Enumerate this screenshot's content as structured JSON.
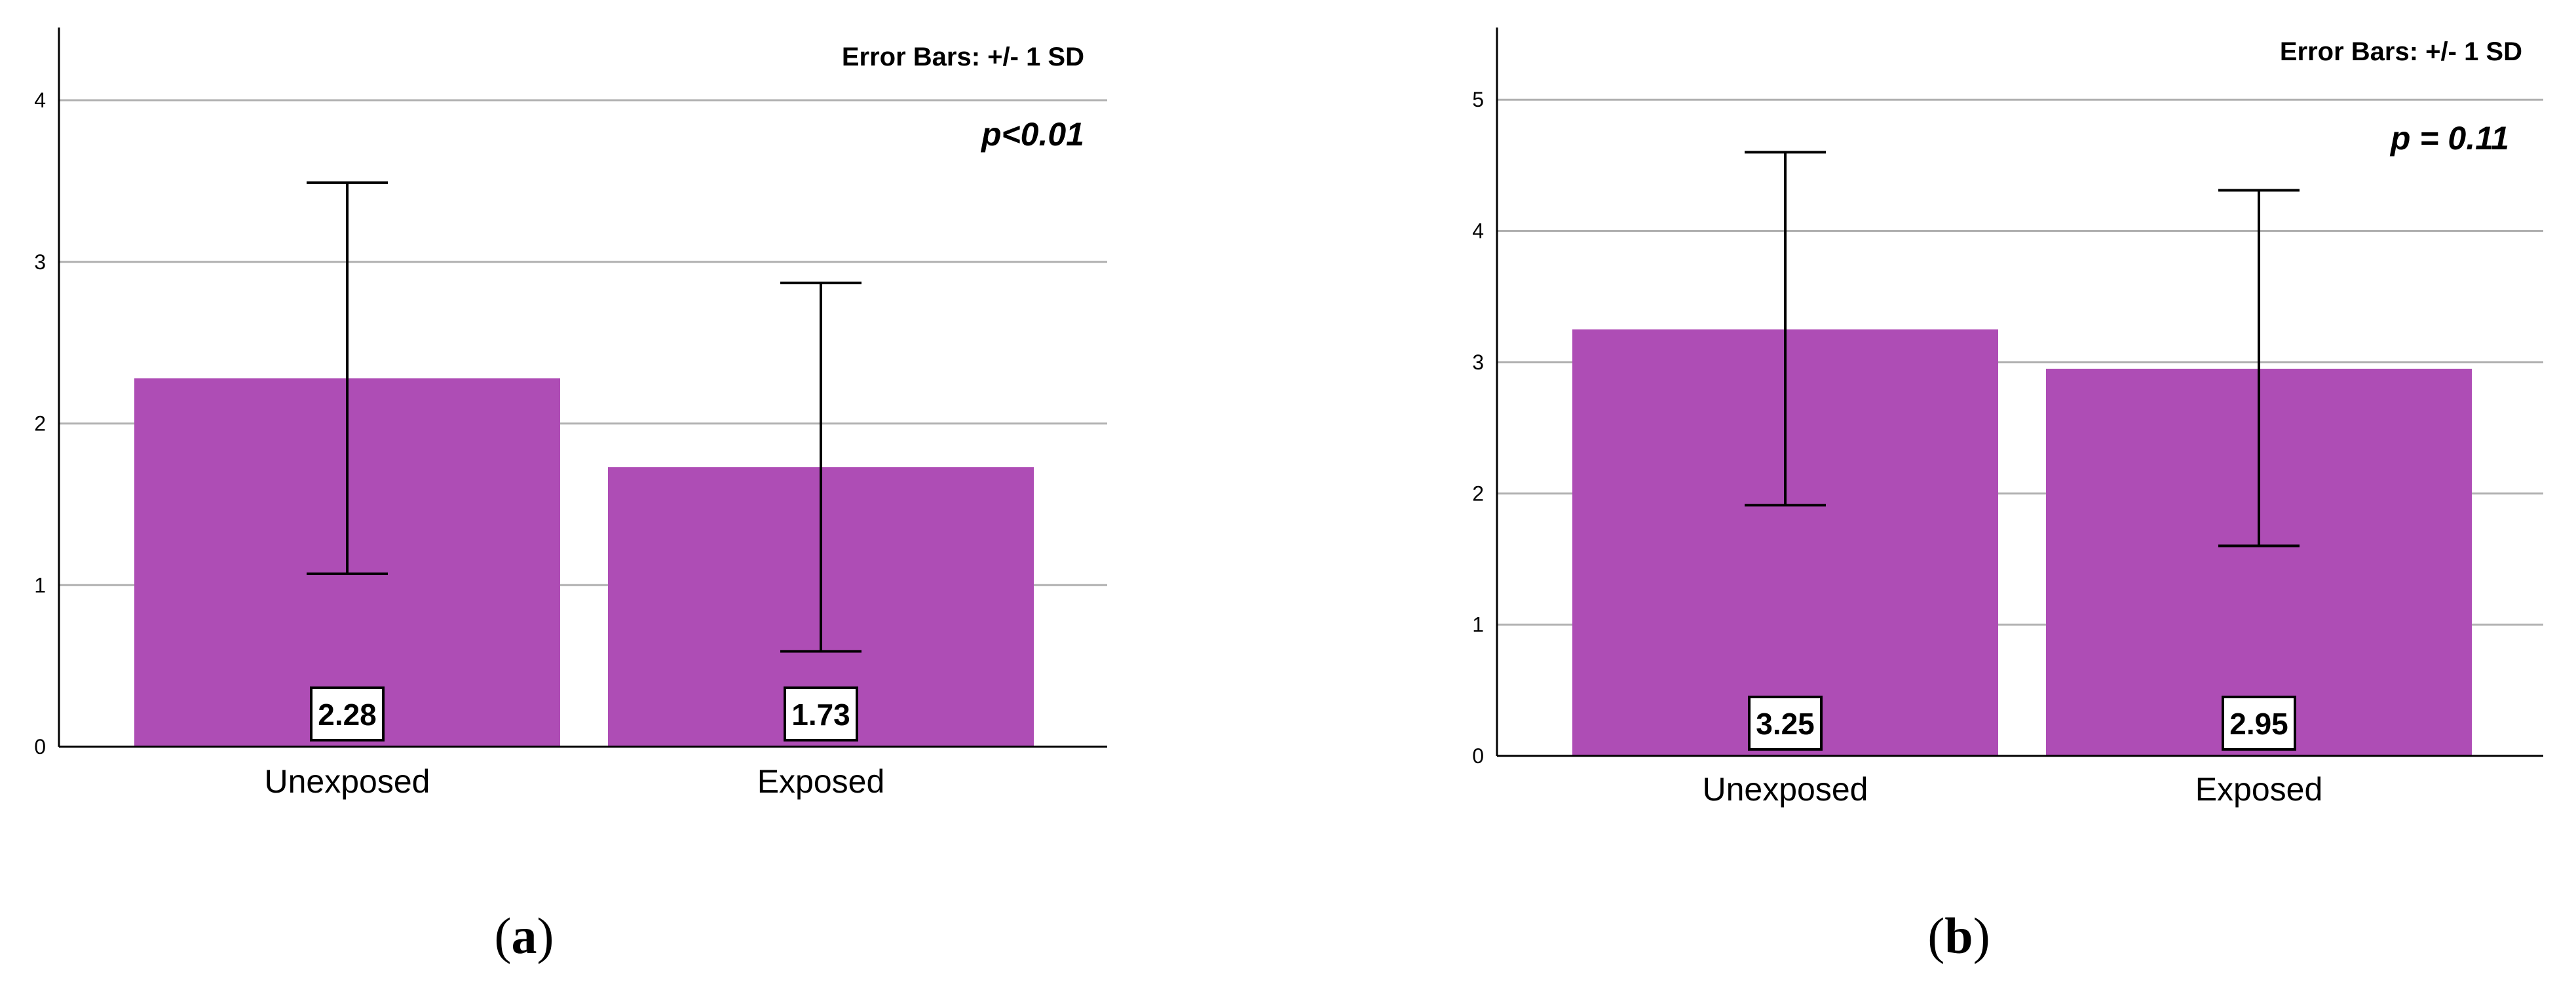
{
  "chart_data": [
    {
      "type": "bar",
      "panel_label": "a",
      "categories": [
        "Unexposed",
        "Exposed"
      ],
      "values": [
        2.28,
        1.73
      ],
      "value_labels": [
        "2.28",
        "1.73"
      ],
      "error_bars": [
        {
          "low": 1.07,
          "high": 3.49
        },
        {
          "low": 0.59,
          "high": 2.87
        }
      ],
      "ylim": [
        0,
        4.45
      ],
      "yticks": [
        "0",
        "1",
        "2",
        "3",
        "4"
      ],
      "grid": true,
      "note": "Error Bars: +/- 1 SD",
      "annotation": "p<0.01",
      "bar_color": "#AE4DB5"
    },
    {
      "type": "bar",
      "panel_label": "b",
      "categories": [
        "Unexposed",
        "Exposed"
      ],
      "values": [
        3.25,
        2.95
      ],
      "value_labels": [
        "3.25",
        "2.95"
      ],
      "error_bars": [
        {
          "low": 1.91,
          "high": 4.6
        },
        {
          "low": 1.6,
          "high": 4.31
        }
      ],
      "ylim": [
        0,
        5.55
      ],
      "yticks": [
        "0",
        "1",
        "2",
        "3",
        "4",
        "5"
      ],
      "grid": true,
      "note": "Error Bars: +/- 1 SD",
      "annotation": "p = 0.11",
      "bar_color": "#AE4DB5"
    }
  ]
}
